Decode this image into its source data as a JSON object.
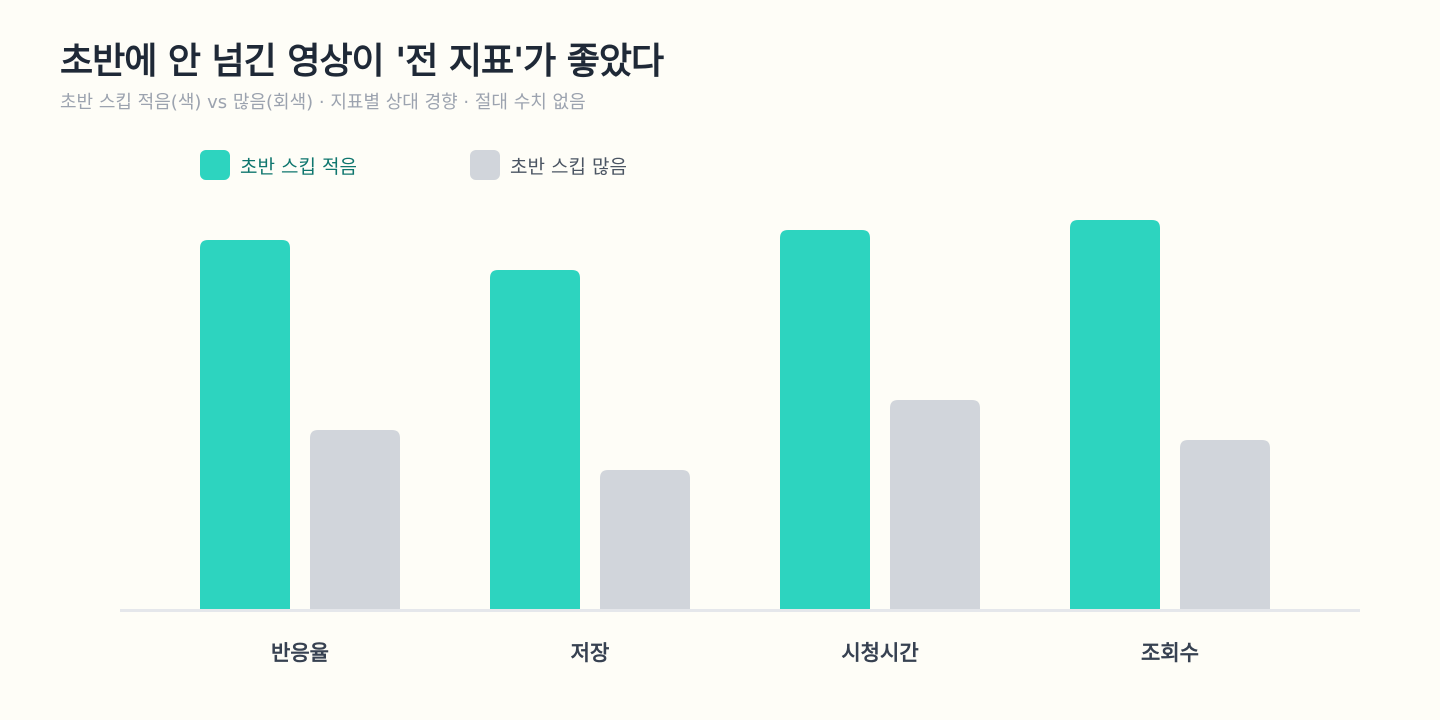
{
  "title": "초반에 안 넘긴 영상이 '전 지표'가 좋았다",
  "subtitle": "초반 스킵 적음(색) vs 많음(회색) · 지표별 상대 경향 · 절대 수치 없음",
  "colors": {
    "low_skip": "#2DD4BF",
    "high_skip": "#D1D5DB",
    "low_skip_legend_text": "#0F766E",
    "high_skip_legend_text": "#4B5563",
    "baseline": "#E5E7EB"
  },
  "chart_data": {
    "type": "bar",
    "categories": [
      "반응율",
      "저장",
      "시청시간",
      "조회수"
    ],
    "series": [
      {
        "name": "초반 스킵 적음",
        "values": [
          92.5,
          85,
          95,
          97.5
        ]
      },
      {
        "name": "초반 스킵 많음",
        "values": [
          45,
          35,
          52.5,
          42.5
        ]
      }
    ],
    "ylim": [
      0,
      100
    ],
    "grid": false,
    "legend": "top-left"
  }
}
